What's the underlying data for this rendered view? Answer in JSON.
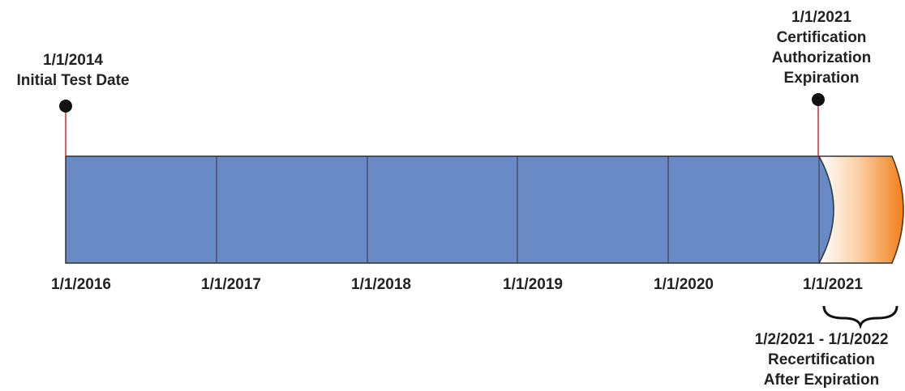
{
  "markers": [
    {
      "lines": [
        "1/1/2014",
        "Initial Test Date"
      ]
    },
    {
      "lines": [
        "1/1/2021",
        "Certification",
        "Authorization",
        "Expiration"
      ]
    }
  ],
  "axis_labels": [
    "1/1/2016",
    "1/1/2017",
    "1/1/2018",
    "1/1/2019",
    "1/1/2020",
    "1/1/2021"
  ],
  "recertification": {
    "lines": [
      "1/2/2021 - 1/1/2022",
      "Recertification",
      "After Expiration"
    ]
  }
}
